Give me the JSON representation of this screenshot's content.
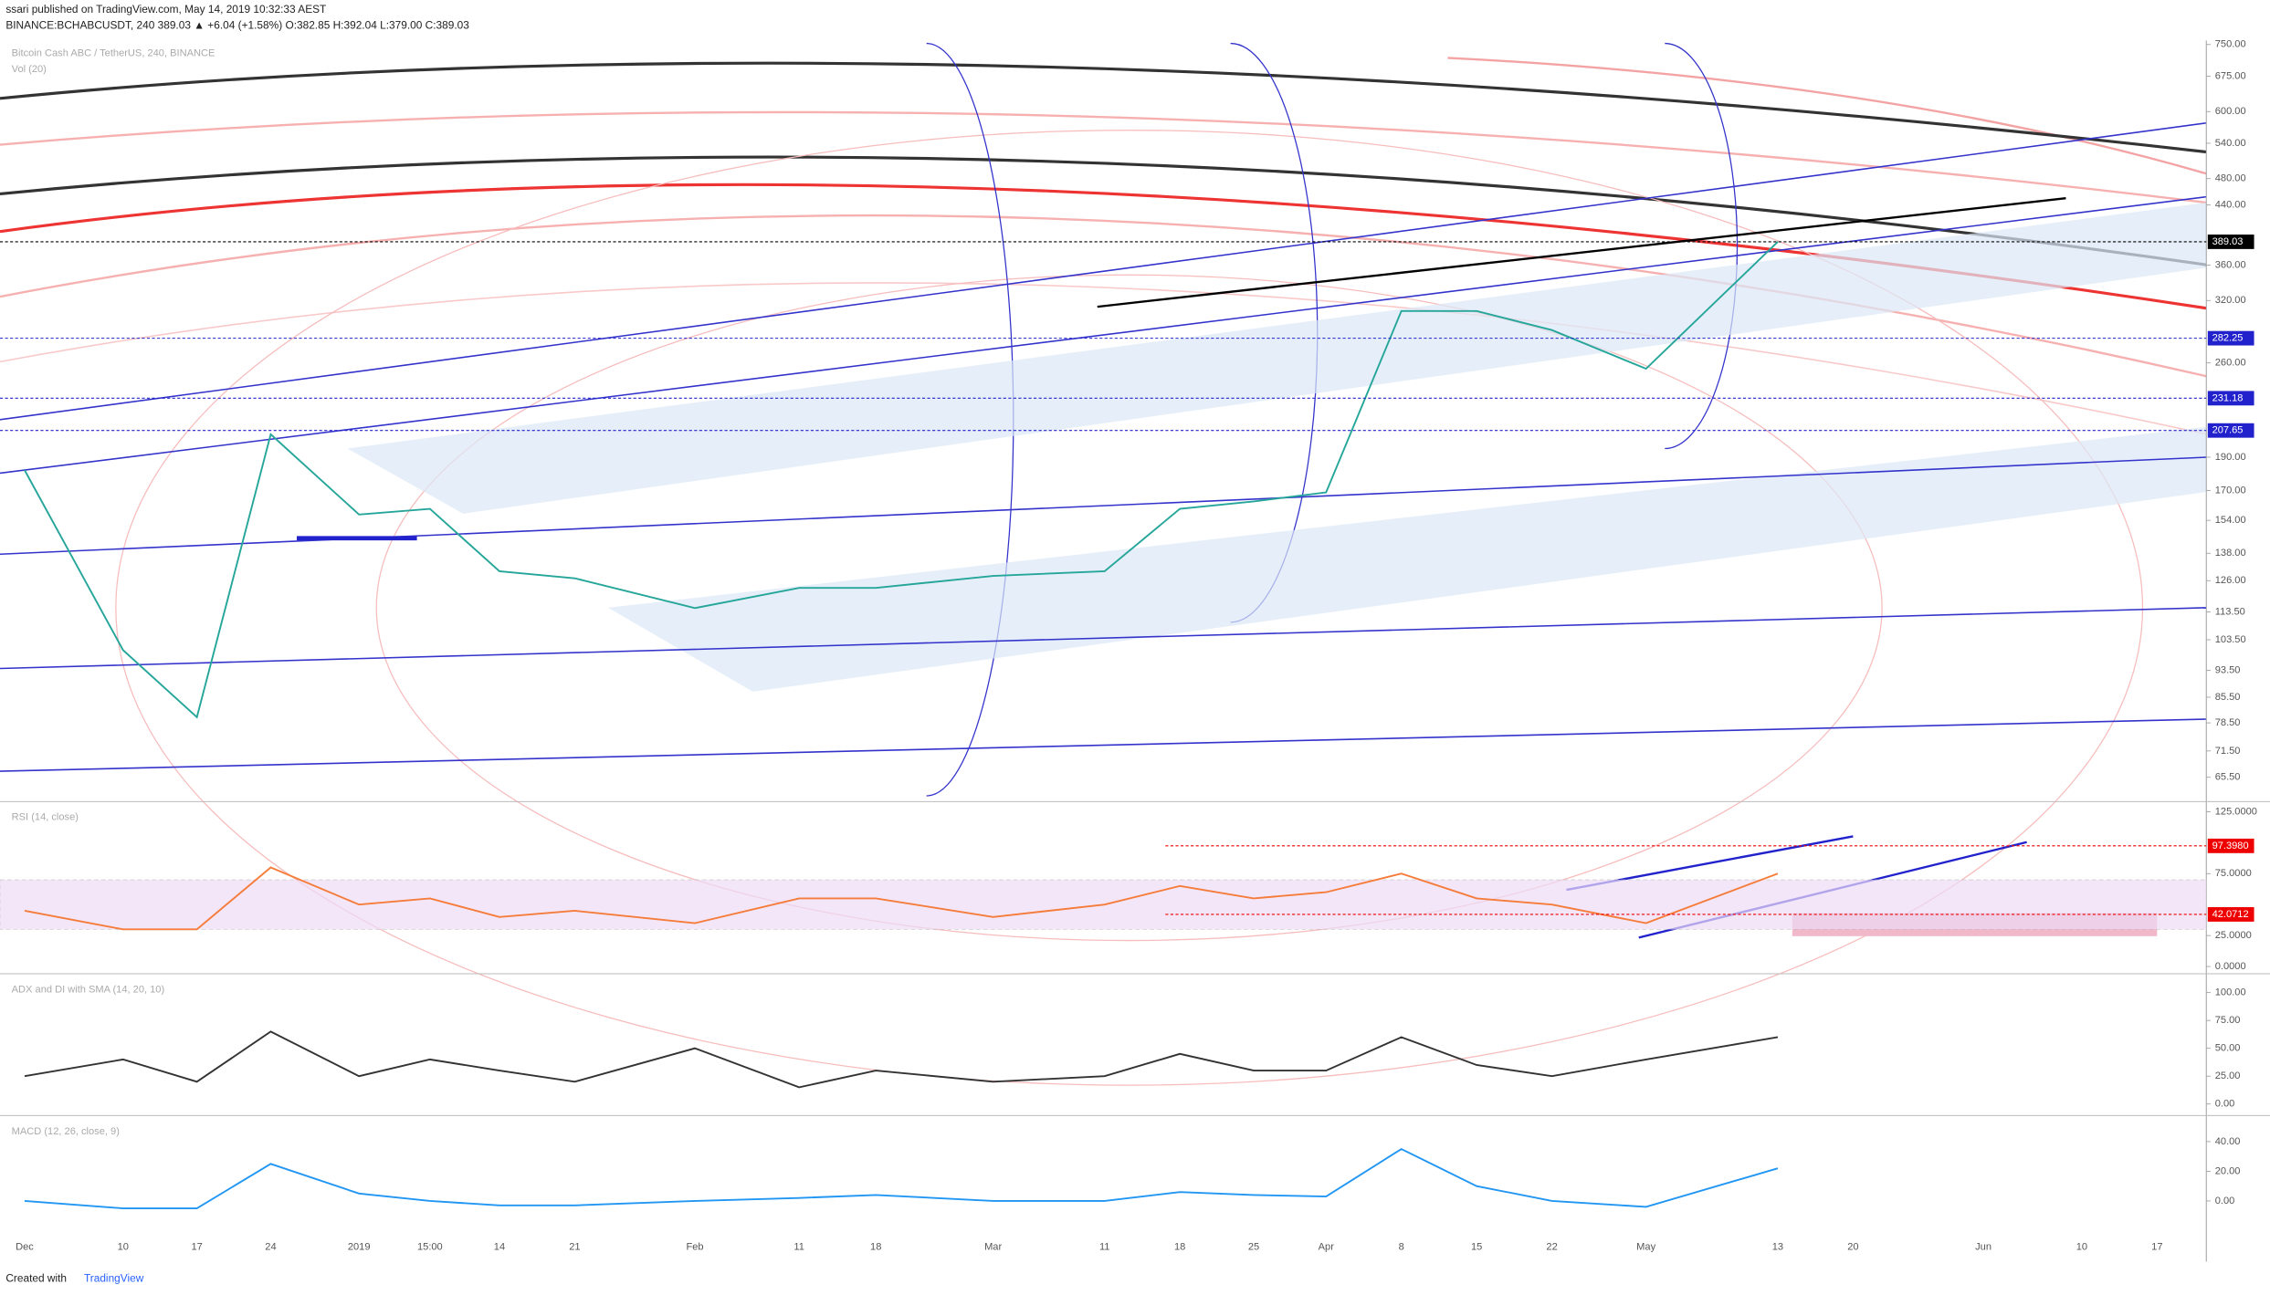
{
  "header": {
    "published": "ssari published on TradingView.com, May 14, 2019 10:32:33 AEST",
    "symbol": "BINANCE:BCHABCUSDT, 240  389.03  ▲ +6.04 (+1.58%)  O:382.85  H:392.04  L:379.00  C:389.03"
  },
  "footer": {
    "created": "Created with",
    "brand": "TradingView"
  },
  "chart_data": [
    {
      "type": "line",
      "title": "Bitcoin Cash ABC / TetherUS, 240, BINANCE",
      "subtitle": "Vol (20)",
      "categories": [
        "Dec",
        "10",
        "17",
        "24",
        "2019",
        "15:00",
        "14",
        "21",
        "Feb",
        "11",
        "18",
        "Mar",
        "11",
        "18",
        "25",
        "Apr",
        "8",
        "15",
        "22",
        "May",
        "13",
        "20",
        "Jun",
        "10",
        "17"
      ],
      "values": [
        182,
        100,
        80,
        205,
        157,
        160,
        130,
        127,
        115,
        123,
        123,
        128,
        130,
        160,
        164,
        169,
        309,
        309,
        290,
        255,
        389.03,
        null,
        null,
        null,
        null
      ],
      "color": "#26a69a",
      "log_scale": true,
      "ylim": [
        60.7,
        760
      ],
      "yticks": [
        {
          "value": 750,
          "label": "750.00"
        },
        {
          "value": 675,
          "label": "675.00"
        },
        {
          "value": 600,
          "label": "600.00"
        },
        {
          "value": 540,
          "label": "540.00"
        },
        {
          "value": 480,
          "label": "480.00"
        },
        {
          "value": 440,
          "label": "440.00"
        },
        {
          "value": 360,
          "label": "360.00"
        },
        {
          "value": 320,
          "label": "320.00"
        },
        {
          "value": 260,
          "label": "260.00"
        },
        {
          "value": 190,
          "label": "190.00"
        },
        {
          "value": 170,
          "label": "170.00"
        },
        {
          "value": 154,
          "label": "154.00"
        },
        {
          "value": 138,
          "label": "138.00"
        },
        {
          "value": 126,
          "label": "126.00"
        },
        {
          "value": 113.5,
          "label": "113.50"
        },
        {
          "value": 103.5,
          "label": "103.50"
        },
        {
          "value": 93.5,
          "label": "93.50"
        },
        {
          "value": 85.5,
          "label": "85.50"
        },
        {
          "value": 78.5,
          "label": "78.50"
        },
        {
          "value": 71.5,
          "label": "71.50"
        },
        {
          "value": 65.5,
          "label": "65.50"
        }
      ],
      "levels": [
        {
          "value": 389.03,
          "color": "#000"
        },
        {
          "value": 282.25,
          "color": "#22c"
        },
        {
          "value": 231.18,
          "color": "#22c"
        },
        {
          "value": 207.65,
          "color": "#22c"
        }
      ]
    },
    {
      "type": "line",
      "title": "RSI (14, close)",
      "values": [
        45,
        30,
        30,
        80,
        50,
        55,
        40,
        45,
        35,
        55,
        55,
        40,
        50,
        65,
        55,
        60,
        75,
        55,
        50,
        35,
        75,
        null,
        null,
        null,
        null
      ],
      "color": "#f57c3a",
      "ylim": [
        -4.7,
        130.8
      ],
      "band": [
        30,
        70
      ],
      "yticks": [
        {
          "value": 125,
          "label": "125.0000"
        },
        {
          "value": 75,
          "label": "75.0000"
        },
        {
          "value": 25,
          "label": "25.0000"
        },
        {
          "value": 0,
          "label": "0.0000"
        }
      ],
      "levels": [
        {
          "value": 97.398,
          "label": "97.3980",
          "color": "#e00"
        },
        {
          "value": 42.0712,
          "label": "42.0712",
          "color": "#e00"
        }
      ]
    },
    {
      "type": "line",
      "title": "ADX and DI with SMA (14, 20, 10)",
      "values": [
        25,
        40,
        20,
        65,
        25,
        40,
        30,
        20,
        50,
        15,
        30,
        20,
        25,
        45,
        30,
        30,
        60,
        35,
        25,
        40,
        60,
        null,
        null,
        null,
        null
      ],
      "color": "#333",
      "ylim": [
        -9.1,
        114.3
      ],
      "yticks": [
        {
          "value": 100,
          "label": "100.00"
        },
        {
          "value": 75,
          "label": "75.00"
        },
        {
          "value": 50,
          "label": "50.00"
        },
        {
          "value": 25,
          "label": "25.00"
        },
        {
          "value": 0,
          "label": "0.00"
        }
      ]
    },
    {
      "type": "line",
      "title": "MACD (12, 26, close, 9)",
      "values": [
        0,
        -5,
        -5,
        25,
        5,
        0,
        -3,
        -3,
        0,
        2,
        4,
        0,
        0,
        6,
        4,
        3,
        35,
        10,
        0,
        -4,
        22,
        null,
        null,
        null,
        null
      ],
      "color": "#2196f3",
      "ylim": [
        -24.4,
        55.6
      ],
      "yticks": [
        {
          "value": 40,
          "label": "40.00"
        },
        {
          "value": 20,
          "label": "20.00"
        },
        {
          "value": 0,
          "label": "0.00"
        }
      ]
    }
  ]
}
